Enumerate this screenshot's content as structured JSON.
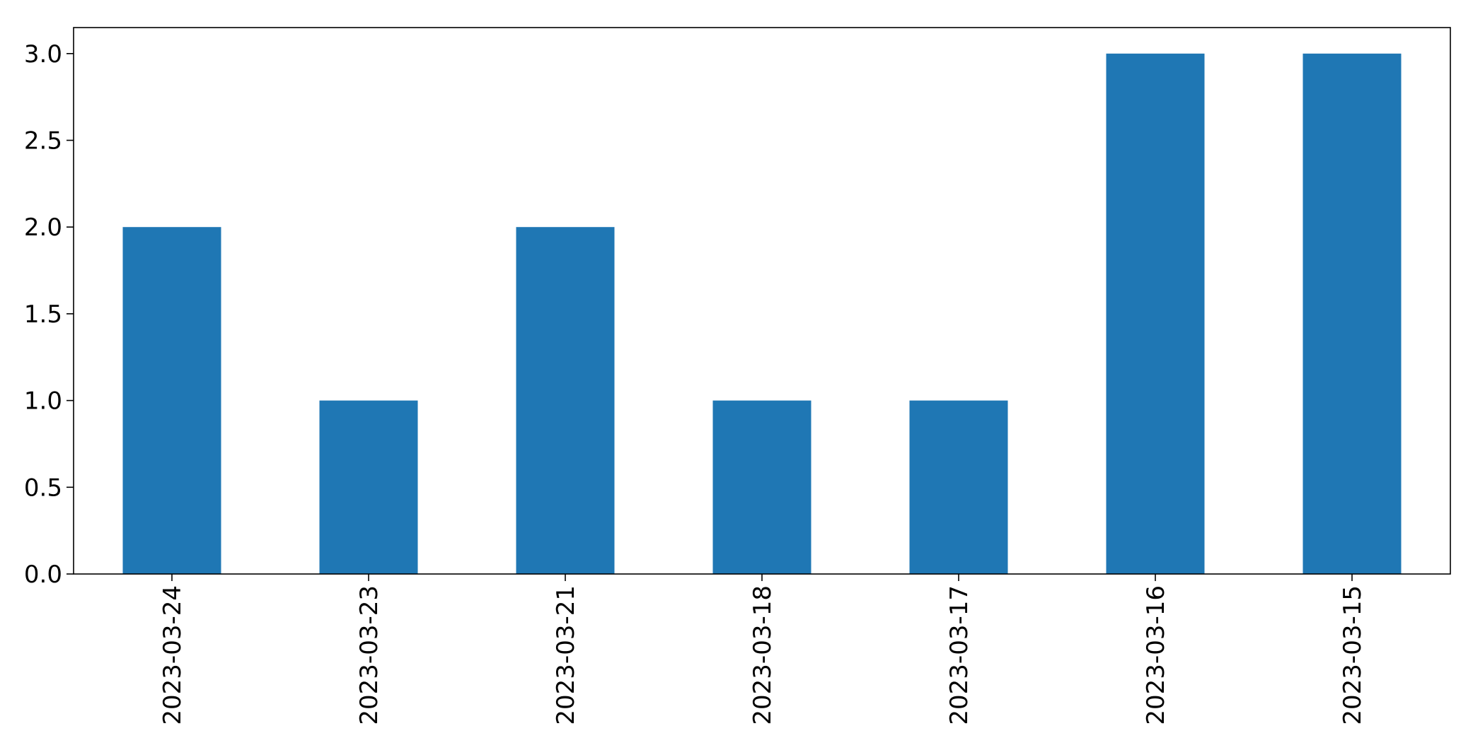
{
  "chart_data": {
    "type": "bar",
    "categories": [
      "2023-03-24",
      "2023-03-23",
      "2023-03-21",
      "2023-03-18",
      "2023-03-17",
      "2023-03-16",
      "2023-03-15"
    ],
    "values": [
      2,
      1,
      2,
      1,
      1,
      3,
      3
    ],
    "title": "",
    "xlabel": "",
    "ylabel": "",
    "ylim": [
      0,
      3.15
    ],
    "yticks": [
      "0.0",
      "0.5",
      "1.0",
      "1.5",
      "2.0",
      "2.5",
      "3.0"
    ],
    "grid": false,
    "legend": "none",
    "bar_color": "#1f77b4",
    "x_tick_rotation": "vertical"
  }
}
